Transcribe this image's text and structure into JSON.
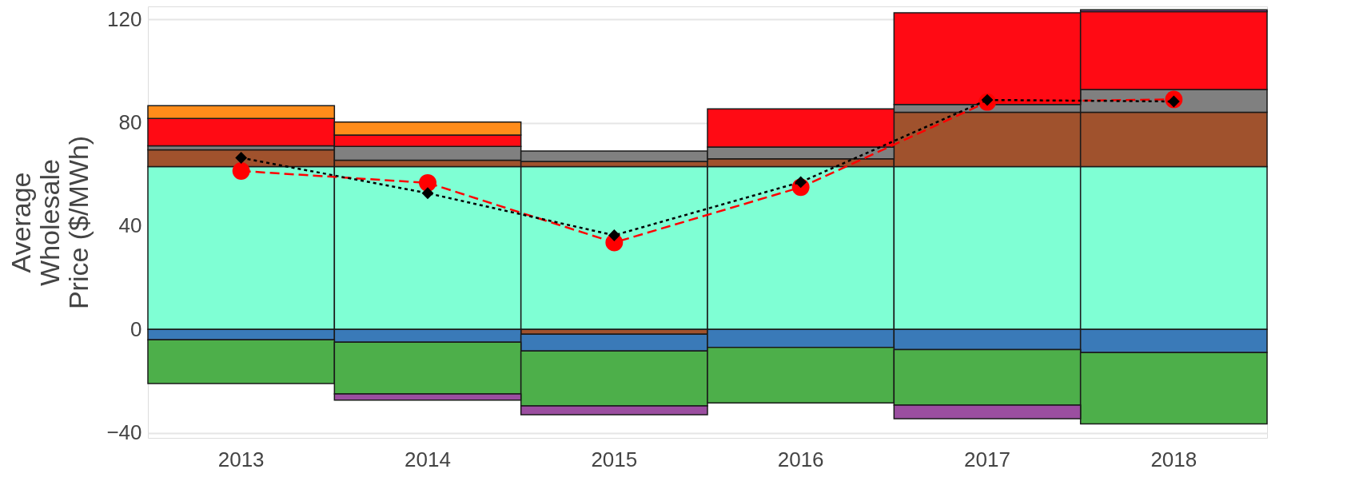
{
  "chart_data": {
    "type": "bar",
    "stacked": true,
    "ylabel": "Average\nWholesale\nPrice ($/MWh)",
    "categories": [
      "2013",
      "2014",
      "2015",
      "2016",
      "2017",
      "2018"
    ],
    "series": [
      {
        "color": "#7fffd4",
        "values": [
          63,
          63,
          63,
          63,
          63,
          63
        ]
      },
      {
        "color": "#a0522d",
        "values": [
          6.5,
          2.5,
          2,
          3,
          21,
          21
        ]
      },
      {
        "color": "#a0522d",
        "values": [
          null,
          null,
          -1.9,
          null,
          null,
          null
        ]
      },
      {
        "color": "#3a7ab8",
        "values": [
          -4,
          -5,
          -6.5,
          -7,
          -7.8,
          -9
        ]
      },
      {
        "color": "#808080",
        "values": [
          1.5,
          5.3,
          4,
          4.6,
          3,
          8.8
        ]
      },
      {
        "color": "#ff0a14",
        "values": [
          10.6,
          4.4,
          null,
          14.7,
          35.5,
          30.2
        ]
      },
      {
        "color": "#ff8c1a",
        "values": [
          5,
          5,
          null,
          null,
          null,
          null
        ]
      },
      {
        "color": "#4daf4a",
        "values": [
          -17,
          -20,
          -21.2,
          -21.5,
          -21.5,
          -27.6
        ]
      },
      {
        "color": "#9b4ea0",
        "values": [
          null,
          -2.4,
          -3.4,
          null,
          -5.3,
          0.7
        ]
      },
      {
        "type": "line",
        "color": "#ff0000",
        "marker": "circle",
        "line_style": "dashed",
        "values": [
          61.3,
          56.7,
          33.6,
          55,
          88,
          89
        ]
      },
      {
        "type": "line",
        "color": "#000000",
        "marker": "diamond",
        "line_style": "dotted",
        "values": [
          66.4,
          52.7,
          36.4,
          57,
          88.8,
          88.2
        ]
      }
    ],
    "ylim": [
      -42,
      125
    ],
    "yticks": [
      -40,
      0,
      40,
      80,
      120
    ],
    "grid": "y",
    "legend": false
  }
}
